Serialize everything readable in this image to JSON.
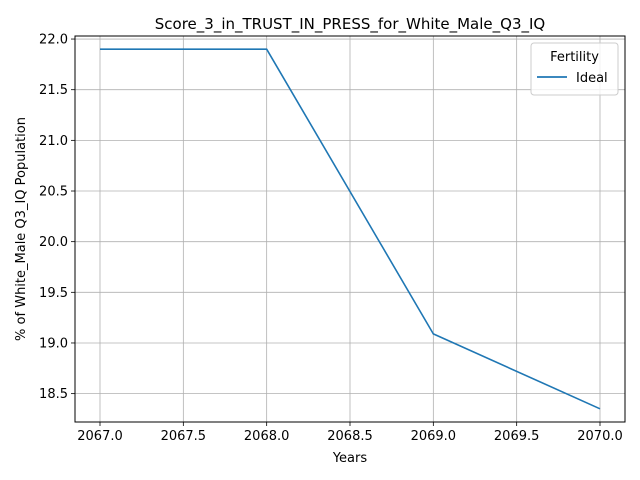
{
  "chart_data": {
    "type": "line",
    "title": "Score_3_in_TRUST_IN_PRESS_for_White_Male_Q3_IQ",
    "xlabel": "Years",
    "ylabel": "% of White_Male Q3_IQ Population",
    "x": [
      2067,
      2068,
      2069,
      2070
    ],
    "series": [
      {
        "name": "Ideal",
        "values": [
          21.9,
          21.9,
          19.09,
          18.35
        ],
        "color": "#1f77b4"
      }
    ],
    "xlim": [
      2066.85,
      2070.15
    ],
    "ylim": [
      18.22,
      22.03
    ],
    "xticks": [
      2067.0,
      2067.5,
      2068.0,
      2068.5,
      2069.0,
      2069.5,
      2070.0
    ],
    "xtick_labels": [
      "2067.0",
      "2067.5",
      "2068.0",
      "2068.5",
      "2069.0",
      "2069.5",
      "2070.0"
    ],
    "yticks": [
      18.5,
      19.0,
      19.5,
      20.0,
      20.5,
      21.0,
      21.5,
      22.0
    ],
    "ytick_labels": [
      "18.5",
      "19.0",
      "19.5",
      "20.0",
      "20.5",
      "21.0",
      "21.5",
      "22.0"
    ],
    "grid": true,
    "legend": {
      "title": "Fertility",
      "placement": "top-right"
    }
  }
}
